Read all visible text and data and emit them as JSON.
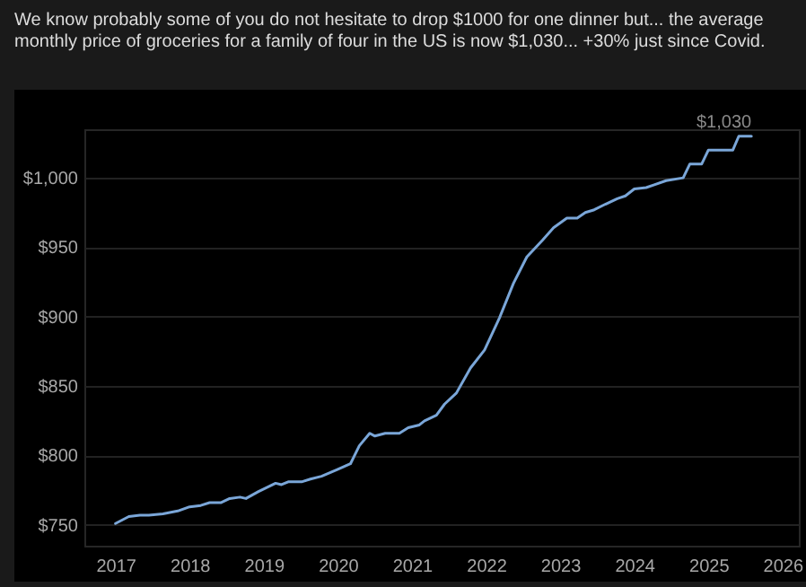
{
  "chart_data": {
    "type": "line",
    "title": "We know probably some of you do not hesitate to drop $1000 for one dinner but... the average monthly price of groceries for a family of four in the US is now $1,030... +30% just since Covid.",
    "x": [
      2017.0,
      2017.18,
      2017.33,
      2017.45,
      2017.64,
      2017.84,
      2018.0,
      2018.15,
      2018.27,
      2018.42,
      2018.54,
      2018.68,
      2018.76,
      2018.93,
      2019.16,
      2019.24,
      2019.33,
      2019.51,
      2019.63,
      2019.78,
      2020.0,
      2020.17,
      2020.29,
      2020.43,
      2020.5,
      2020.64,
      2020.83,
      2020.95,
      2021.1,
      2021.17,
      2021.33,
      2021.44,
      2021.6,
      2021.79,
      2021.98,
      2022.18,
      2022.37,
      2022.55,
      2022.76,
      2022.91,
      2023.09,
      2023.23,
      2023.34,
      2023.46,
      2023.61,
      2023.77,
      2023.88,
      2024.0,
      2024.16,
      2024.27,
      2024.43,
      2024.66,
      2024.75,
      2024.91,
      2025.0,
      2025.33,
      2025.41,
      2025.58
    ],
    "series": [
      {
        "color": "#7aa6d8",
        "values": [
          751,
          756,
          757,
          757,
          758,
          760,
          763,
          764,
          766,
          766,
          769,
          770,
          769,
          774,
          780,
          779,
          781,
          781,
          783,
          785,
          790,
          794,
          807,
          816,
          814,
          816,
          816,
          820,
          822,
          825,
          829,
          837,
          845,
          863,
          876,
          899,
          924,
          943,
          955,
          964,
          971,
          971,
          975,
          977,
          981,
          985,
          987,
          992,
          993,
          995,
          998,
          1000,
          1010,
          1010,
          1020,
          1020,
          1030,
          1030
        ]
      }
    ],
    "xlim": [
      2016.58,
      2026.22
    ],
    "xticks": [
      2017,
      2018,
      2019,
      2020,
      2021,
      2022,
      2023,
      2024,
      2025,
      2026
    ],
    "ylim": [
      735,
      1035
    ],
    "yticks": [
      {
        "value": 750,
        "label": "$750"
      },
      {
        "value": 800,
        "label": "$800"
      },
      {
        "value": 850,
        "label": "$850"
      },
      {
        "value": 900,
        "label": "$900"
      },
      {
        "value": 950,
        "label": "$950"
      },
      {
        "value": 1000,
        "label": "$1,000"
      }
    ],
    "grid": "y",
    "legend": false,
    "marker": "none",
    "line_style": "solid",
    "annotations": [
      {
        "text": "$1,030",
        "x": 2025.58,
        "y": 1030
      }
    ]
  }
}
